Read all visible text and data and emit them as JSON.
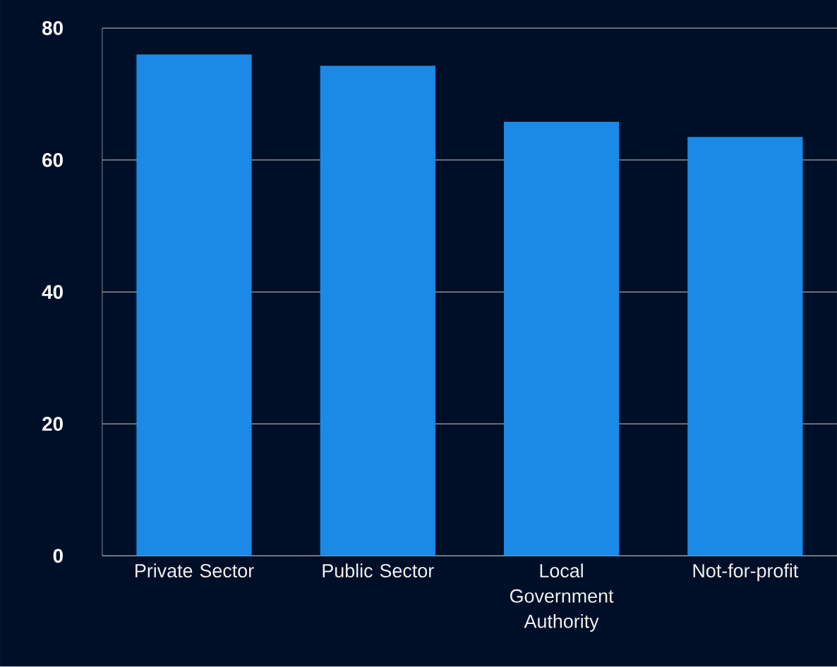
{
  "chart_data": {
    "type": "bar",
    "categories": [
      "Private Sector",
      "Public Sector",
      "Local Government Authority",
      "Not-for-profit"
    ],
    "values": [
      76,
      74.3,
      65.8,
      63.5
    ],
    "color": "#1a8ae6",
    "ylim": [
      0,
      80
    ],
    "yticks": [
      0,
      20,
      40,
      60,
      80
    ],
    "grid": "y"
  }
}
